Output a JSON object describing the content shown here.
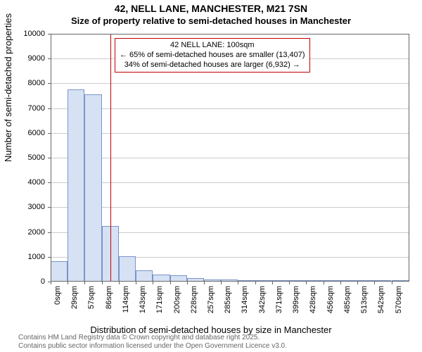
{
  "title": {
    "main": "42, NELL LANE, MANCHESTER, M21 7SN",
    "sub": "Size of property relative to semi-detached houses in Manchester"
  },
  "axes": {
    "ylabel": "Number of semi-detached properties",
    "xlabel": "Distribution of semi-detached houses by size in Manchester"
  },
  "chart": {
    "type": "histogram",
    "xlim": [
      0,
      600
    ],
    "ylim": [
      0,
      10000
    ],
    "ytick_step": 1000,
    "xtick_step": 28.5,
    "xtick_count": 21,
    "xtick_suffix": "sqm",
    "background_color": "#ffffff",
    "grid_color": "#cccccc",
    "bar_fill": "#d6e2f3",
    "bar_stroke": "#7a94c8",
    "vline_color": "#c00000",
    "annotation_border": "#c00000",
    "bin_width": 28.5,
    "values": [
      830,
      7750,
      7550,
      2250,
      1030,
      460,
      280,
      270,
      140,
      80,
      80,
      55,
      70,
      25,
      15,
      15,
      10,
      10,
      8,
      8,
      4
    ]
  },
  "marker": {
    "x": 100,
    "lines": [
      "42 NELL LANE: 100sqm",
      "← 65% of semi-detached houses are smaller (13,407)",
      "34% of semi-detached houses are larger (6,932) →"
    ]
  },
  "credits": {
    "line1": "Contains HM Land Registry data © Crown copyright and database right 2025.",
    "line2": "Contains public sector information licensed under the Open Government Licence v3.0."
  }
}
